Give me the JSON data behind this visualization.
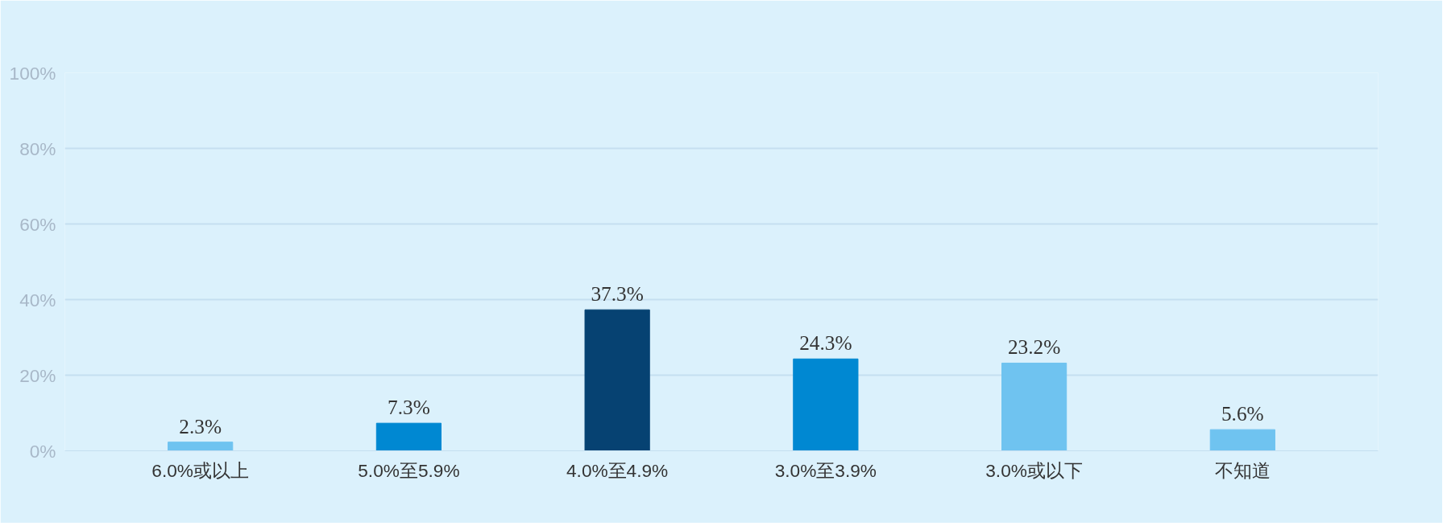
{
  "chart_data": {
    "type": "bar",
    "categories": [
      "6.0%或以上",
      "5.0%至5.9%",
      "4.0%至4.9%",
      "3.0%至3.9%",
      "3.0%或以下",
      "不知道"
    ],
    "values": [
      2.3,
      7.3,
      37.3,
      24.3,
      23.2,
      5.6
    ],
    "colors": [
      "#6fc3f0",
      "#0088d2",
      "#064272",
      "#0088d2",
      "#6fc3f0",
      "#6fc3f0"
    ],
    "value_labels": [
      "2.3%",
      "7.3%",
      "37.3%",
      "24.3%",
      "23.2%",
      "5.6%"
    ],
    "ylim": [
      0,
      100
    ],
    "yticks": [
      {
        "value": 0,
        "label": "0%"
      },
      {
        "value": 20,
        "label": "20%"
      },
      {
        "value": 40,
        "label": "40%"
      },
      {
        "value": 60,
        "label": "60%"
      },
      {
        "value": 80,
        "label": "80%"
      },
      {
        "value": 100,
        "label": "100%"
      }
    ],
    "grid": "y"
  }
}
